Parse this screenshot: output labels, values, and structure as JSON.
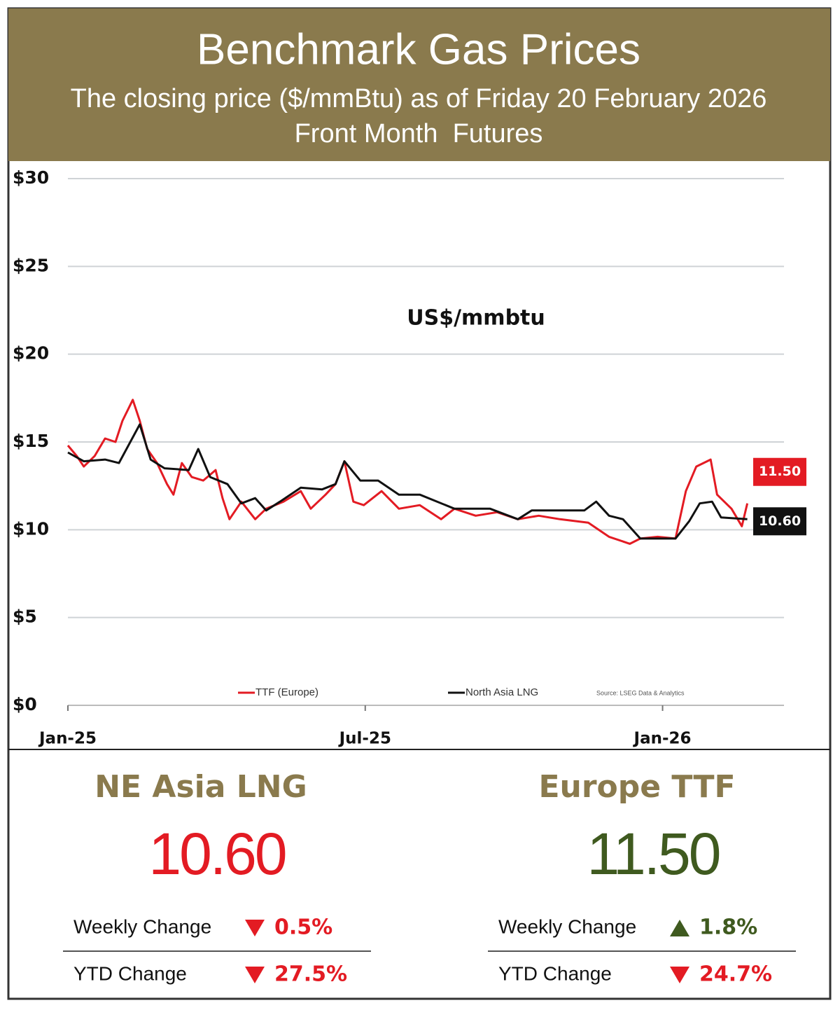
{
  "chart_data": {
    "type": "line",
    "title": "Benchmark Gas Prices",
    "subtitle": "The closing price ($/mmBtu) as of Friday 20 February 2026",
    "subtitle2": "Front Month  Futures",
    "annotation": "US$/mmbtu",
    "source": "Source: LSEG Data & Analytics",
    "xlim": [
      0,
      14.45
    ],
    "xticks": [
      {
        "value": 0,
        "label": "Jan-25"
      },
      {
        "value": 6,
        "label": "Jul-25"
      },
      {
        "value": 12,
        "label": "Jan-26"
      }
    ],
    "ylim": [
      0,
      30
    ],
    "yticks": [
      {
        "value": 0,
        "label": "$0"
      },
      {
        "value": 5,
        "label": "$5"
      },
      {
        "value": 10,
        "label": "$10"
      },
      {
        "value": 15,
        "label": "$15"
      },
      {
        "value": 20,
        "label": "$20"
      },
      {
        "value": 25,
        "label": "$25"
      },
      {
        "value": 30,
        "label": "$30"
      }
    ],
    "grid": true,
    "series": [
      {
        "name": "TTF (Europe)",
        "color": "#e31b23",
        "x": [
          0,
          0.18,
          0.32,
          0.54,
          0.75,
          0.96,
          1.1,
          1.31,
          1.45,
          1.6,
          1.8,
          2.0,
          2.13,
          2.3,
          2.5,
          2.73,
          2.98,
          3.12,
          3.26,
          3.5,
          3.78,
          4.0,
          4.35,
          4.7,
          4.9,
          5.2,
          5.4,
          5.58,
          5.76,
          5.97,
          6.33,
          6.68,
          7.1,
          7.53,
          7.8,
          8.23,
          8.66,
          9.08,
          9.5,
          9.93,
          10.5,
          10.92,
          11.34,
          11.55,
          11.9,
          12.26,
          12.47,
          12.68,
          12.97,
          13.1,
          13.39,
          13.6,
          13.71
        ],
        "values": [
          14.8,
          14.2,
          13.6,
          14.2,
          15.2,
          15.0,
          16.2,
          17.4,
          16.2,
          14.6,
          13.8,
          12.6,
          12.0,
          13.8,
          13.0,
          12.8,
          13.4,
          11.8,
          10.6,
          11.6,
          10.6,
          11.2,
          11.6,
          12.2,
          11.2,
          12.0,
          12.6,
          13.9,
          11.6,
          11.4,
          12.2,
          11.2,
          11.4,
          10.6,
          11.2,
          10.8,
          11.0,
          10.6,
          10.8,
          10.6,
          10.4,
          9.6,
          9.2,
          9.5,
          9.6,
          9.5,
          12.2,
          13.6,
          14.0,
          12.0,
          11.2,
          10.2,
          11.5
        ],
        "end_label": {
          "text": "11.50",
          "value": 11.5
        }
      },
      {
        "name": "North Asia LNG",
        "color": "#111111",
        "x": [
          0,
          0.32,
          0.75,
          1.03,
          1.45,
          1.67,
          1.95,
          2.44,
          2.63,
          2.87,
          3.22,
          3.5,
          3.78,
          4.0,
          4.28,
          4.7,
          5.13,
          5.4,
          5.58,
          5.9,
          6.26,
          6.68,
          7.1,
          7.8,
          8.52,
          9.08,
          9.36,
          9.79,
          10.42,
          10.66,
          10.92,
          11.2,
          11.55,
          12.26,
          12.54,
          12.75,
          13.0,
          13.18,
          13.71
        ],
        "values": [
          14.4,
          13.9,
          14.0,
          13.8,
          16.0,
          14.0,
          13.5,
          13.4,
          14.6,
          13.0,
          12.6,
          11.5,
          11.8,
          11.1,
          11.6,
          12.4,
          12.3,
          12.6,
          13.9,
          12.8,
          12.8,
          12.0,
          12.0,
          11.2,
          11.2,
          10.6,
          11.1,
          11.1,
          11.1,
          11.6,
          10.8,
          10.6,
          9.5,
          9.5,
          10.5,
          11.5,
          11.6,
          10.7,
          10.6
        ],
        "end_label": {
          "text": "10.60",
          "value": 10.6
        }
      }
    ]
  },
  "panels": [
    {
      "name": "NE Asia LNG",
      "price": "10.60",
      "price_color": "#e31b23",
      "rows": [
        {
          "label": "Weekly Change",
          "direction": "down",
          "change": "0.5%"
        },
        {
          "label": "YTD Change",
          "direction": "down",
          "change": "27.5%"
        }
      ]
    },
    {
      "name": "Europe TTF",
      "price": "11.50",
      "price_color": "#3f5a1f",
      "rows": [
        {
          "label": "Weekly Change",
          "direction": "up",
          "change": "1.8%"
        },
        {
          "label": "YTD Change",
          "direction": "down",
          "change": "24.7%"
        }
      ]
    }
  ]
}
